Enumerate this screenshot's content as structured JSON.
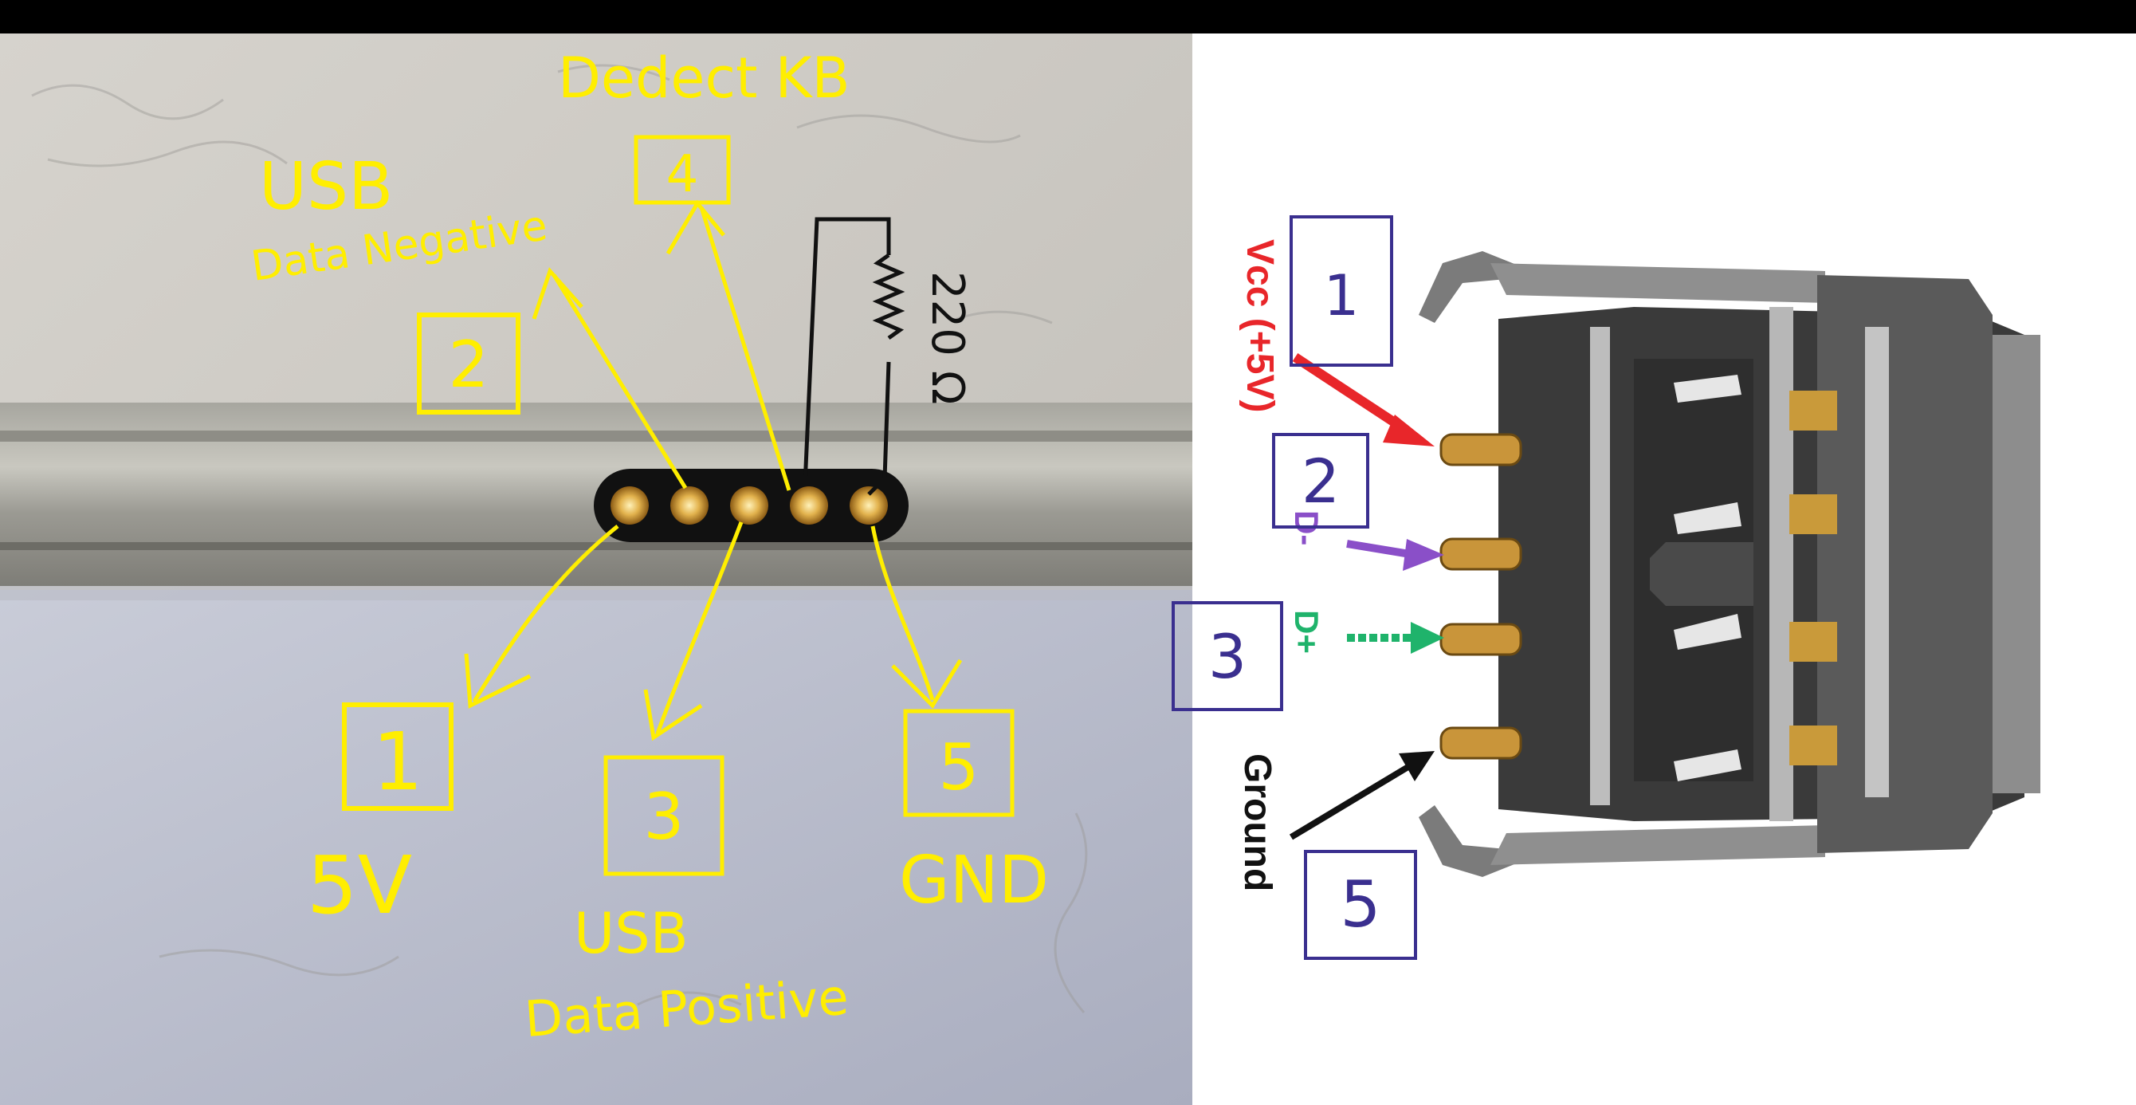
{
  "left_photo": {
    "labels": {
      "detect": "Dedect KB",
      "usb_neg_top": "USB",
      "usb_neg_bottom": "Data Negative",
      "v5": "5V",
      "usb_pos_top": "USB",
      "usb_pos_bottom": "Data Positive",
      "gnd": "GND",
      "resistor": "220 Ω"
    },
    "boxes": {
      "b1": "1",
      "b2": "2",
      "b3": "3",
      "b4": "4",
      "b5": "5"
    },
    "pin_count": 5
  },
  "right_diagram": {
    "labels": {
      "vcc": "Vcc (+5V)",
      "dminus": "D-",
      "dplus": "D+",
      "ground": "Ground"
    },
    "boxes": {
      "b1": "1",
      "b2": "2",
      "b3": "3",
      "b5": "5"
    }
  },
  "colors": {
    "annotation_yellow": "#ffee00",
    "box_blue": "#3a2f8f",
    "vcc_red": "#e8262a",
    "dminus_purple": "#8a4fc8",
    "dplus_green": "#1fb36b",
    "pin_gold": "#d9a441",
    "connector_dark": "#3a3a3a"
  }
}
